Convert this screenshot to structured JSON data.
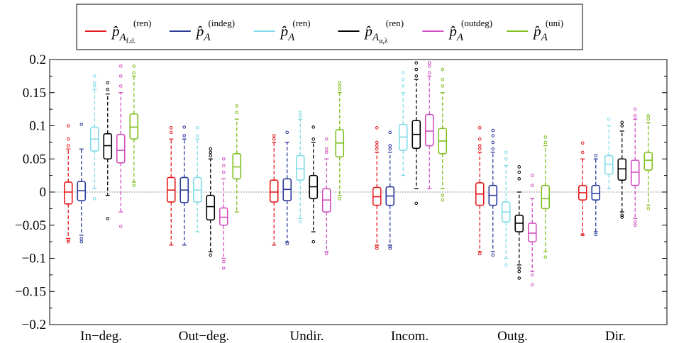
{
  "chart_data": {
    "type": "box",
    "categories": [
      "In−deg.",
      "Out−deg.",
      "Undir.",
      "Incom.",
      "Outg.",
      "Dir."
    ],
    "ylim": [
      -0.2,
      0.2
    ],
    "yticks": [
      "0.2",
      "0.15",
      "0.1",
      "0.05",
      "0",
      "−0.05",
      "−0.1",
      "−0.15",
      "−0.2"
    ],
    "ytick_values": [
      0.2,
      0.15,
      0.1,
      0.05,
      0,
      -0.05,
      -0.1,
      -0.15,
      -0.2
    ],
    "reference_line": 0,
    "legend_position": "top-center",
    "series": [
      {
        "name": "p̂A_f.d.^(ren)",
        "base": "p̂",
        "sub": "A",
        "subsub": "f.d.",
        "sup": "(ren)",
        "color": "#e41a1c",
        "boxes": [
          {
            "whislo": -0.07,
            "q1": -0.018,
            "med": 0.0,
            "q3": 0.015,
            "whishi": 0.065,
            "outliers": [
              -0.072,
              -0.075,
              0.07,
              0.08,
              0.1
            ]
          },
          {
            "whislo": -0.08,
            "q1": -0.015,
            "med": 0.003,
            "q3": 0.022,
            "whishi": 0.08,
            "outliers": [
              0.09,
              0.097
            ]
          },
          {
            "whislo": -0.08,
            "q1": -0.015,
            "med": 0.0,
            "q3": 0.018,
            "whishi": 0.075,
            "outliers": [
              0.08,
              0.085
            ]
          },
          {
            "whislo": -0.08,
            "q1": -0.02,
            "med": -0.007,
            "q3": 0.007,
            "whishi": 0.06,
            "outliers": [
              -0.082,
              -0.085,
              0.065,
              0.07,
              0.075,
              0.097
            ]
          },
          {
            "whislo": -0.09,
            "q1": -0.02,
            "med": -0.003,
            "q3": 0.014,
            "whishi": 0.06,
            "outliers": [
              -0.093,
              0.065,
              0.07,
              0.08,
              0.097
            ]
          },
          {
            "whislo": -0.065,
            "q1": -0.012,
            "med": -0.001,
            "q3": 0.01,
            "whishi": 0.05,
            "outliers": [
              -0.064,
              0.06,
              0.074
            ]
          }
        ]
      },
      {
        "name": "p̂A^(indeg)",
        "base": "p̂",
        "sub": "A",
        "subsub": "",
        "sup": "(indeg)",
        "color": "#2b3a9a",
        "boxes": [
          {
            "whislo": -0.065,
            "q1": -0.013,
            "med": 0.002,
            "q3": 0.016,
            "whishi": 0.065,
            "outliers": [
              -0.07,
              -0.075,
              0.102
            ]
          },
          {
            "whislo": -0.08,
            "q1": -0.016,
            "med": 0.003,
            "q3": 0.022,
            "whishi": 0.08,
            "outliers": [
              0.085,
              0.098
            ]
          },
          {
            "whislo": -0.075,
            "q1": -0.013,
            "med": 0.004,
            "q3": 0.02,
            "whishi": 0.075,
            "outliers": [
              -0.078,
              0.09
            ]
          },
          {
            "whislo": -0.08,
            "q1": -0.02,
            "med": -0.006,
            "q3": 0.008,
            "whishi": 0.06,
            "outliers": [
              -0.082,
              -0.085,
              0.065,
              0.07,
              0.09
            ]
          },
          {
            "whislo": -0.09,
            "q1": -0.02,
            "med": -0.005,
            "q3": 0.01,
            "whishi": 0.06,
            "outliers": [
              -0.095,
              0.065,
              0.075,
              0.085,
              0.093
            ]
          },
          {
            "whislo": -0.06,
            "q1": -0.012,
            "med": -0.002,
            "q3": 0.01,
            "whishi": 0.05,
            "outliers": [
              -0.064,
              0.055
            ]
          }
        ]
      },
      {
        "name": "p̂A^(ren)",
        "base": "p̂",
        "sub": "A",
        "subsub": "",
        "sup": "(ren)",
        "color": "#7fdbe6",
        "boxes": [
          {
            "whislo": 0.005,
            "q1": 0.062,
            "med": 0.08,
            "q3": 0.098,
            "whishi": 0.155,
            "outliers": [
              -0.01,
              0.16,
              0.165,
              0.175
            ]
          },
          {
            "whislo": -0.06,
            "q1": -0.015,
            "med": 0.003,
            "q3": 0.022,
            "whishi": 0.08,
            "outliers": [
              0.085,
              0.097
            ]
          },
          {
            "whislo": -0.04,
            "q1": 0.018,
            "med": 0.035,
            "q3": 0.055,
            "whishi": 0.11,
            "outliers": [
              -0.045,
              0.115,
              0.12
            ]
          },
          {
            "whislo": 0.025,
            "q1": 0.063,
            "med": 0.083,
            "q3": 0.102,
            "whishi": 0.15,
            "outliers": [
              0.16,
              0.17,
              0.18
            ]
          },
          {
            "whislo": -0.1,
            "q1": -0.045,
            "med": -0.03,
            "q3": -0.015,
            "whishi": 0.04,
            "outliers": [
              -0.11,
              0.05,
              0.06
            ]
          },
          {
            "whislo": 0.005,
            "q1": 0.027,
            "med": 0.042,
            "q3": 0.055,
            "whishi": 0.1,
            "outliers": [
              0.11
            ]
          }
        ]
      },
      {
        "name": "p̂A_α,λ^(ren)",
        "base": "p̂",
        "sub": "A",
        "subsub": "α,λ",
        "sup": "(ren)",
        "color": "#000000",
        "boxes": [
          {
            "whislo": -0.005,
            "q1": 0.05,
            "med": 0.07,
            "q3": 0.088,
            "whishi": 0.148,
            "outliers": [
              -0.04,
              0.155,
              0.165
            ]
          },
          {
            "whislo": -0.09,
            "q1": -0.042,
            "med": -0.022,
            "q3": -0.005,
            "whishi": 0.05,
            "outliers": [
              -0.095,
              0.055,
              0.06,
              0.065
            ]
          },
          {
            "whislo": -0.06,
            "q1": -0.01,
            "med": 0.008,
            "q3": 0.025,
            "whishi": 0.075,
            "outliers": [
              -0.075,
              0.08,
              0.098
            ]
          },
          {
            "whislo": 0.005,
            "q1": 0.066,
            "med": 0.087,
            "q3": 0.108,
            "whishi": 0.17,
            "outliers": [
              -0.017,
              0.175,
              0.185,
              0.195
            ]
          },
          {
            "whislo": -0.11,
            "q1": -0.06,
            "med": -0.047,
            "q3": -0.035,
            "whishi": 0.0,
            "outliers": [
              -0.115,
              -0.12,
              -0.13,
              0.02,
              0.03,
              0.038
            ]
          },
          {
            "whislo": -0.03,
            "q1": 0.018,
            "med": 0.035,
            "q3": 0.05,
            "whishi": 0.092,
            "outliers": [
              -0.035,
              -0.038,
              0.1,
              0.105
            ]
          }
        ]
      },
      {
        "name": "p̂A^(outdeg)",
        "base": "p̂",
        "sub": "A",
        "subsub": "",
        "sup": "(outdeg)",
        "color": "#d14fc0",
        "boxes": [
          {
            "whislo": -0.03,
            "q1": 0.044,
            "med": 0.063,
            "q3": 0.087,
            "whishi": 0.15,
            "outliers": [
              -0.052,
              0.16,
              0.175,
              0.19
            ]
          },
          {
            "whislo": -0.1,
            "q1": -0.05,
            "med": -0.038,
            "q3": -0.024,
            "whishi": 0.02,
            "outliers": [
              -0.105,
              -0.115,
              0.03,
              0.04,
              0.05
            ]
          },
          {
            "whislo": -0.09,
            "q1": -0.03,
            "med": -0.012,
            "q3": 0.005,
            "whishi": 0.05,
            "outliers": [
              -0.093,
              0.06,
              0.065,
              0.08
            ]
          },
          {
            "whislo": 0.005,
            "q1": 0.07,
            "med": 0.092,
            "q3": 0.117,
            "whishi": 0.175,
            "outliers": [
              0.18,
              0.19,
              0.195
            ]
          },
          {
            "whislo": -0.12,
            "q1": -0.075,
            "med": -0.062,
            "q3": -0.047,
            "whishi": -0.01,
            "outliers": [
              -0.125,
              -0.14,
              0.01,
              0.025
            ]
          },
          {
            "whislo": -0.04,
            "q1": 0.01,
            "med": 0.03,
            "q3": 0.048,
            "whishi": 0.11,
            "outliers": [
              -0.045,
              -0.05,
              0.115,
              0.125
            ]
          }
        ]
      },
      {
        "name": "p̂A^(uni)",
        "base": "p̂",
        "sub": "A",
        "subsub": "",
        "sup": "(uni)",
        "color": "#7fbf1f",
        "boxes": [
          {
            "whislo": 0.015,
            "q1": 0.08,
            "med": 0.098,
            "q3": 0.118,
            "whishi": 0.175,
            "outliers": [
              0.01,
              0.18,
              0.19
            ]
          },
          {
            "whislo": -0.03,
            "q1": 0.02,
            "med": 0.038,
            "q3": 0.058,
            "whishi": 0.11,
            "outliers": [
              0.12,
              0.13
            ]
          },
          {
            "whislo": -0.005,
            "q1": 0.053,
            "med": 0.074,
            "q3": 0.094,
            "whishi": 0.15,
            "outliers": [
              -0.01,
              0.155,
              0.16,
              0.165
            ]
          },
          {
            "whislo": 0.005,
            "q1": 0.058,
            "med": 0.077,
            "q3": 0.096,
            "whishi": 0.15,
            "outliers": [
              -0.005,
              -0.012,
              0.16,
              0.17,
              0.185
            ]
          },
          {
            "whislo": -0.09,
            "q1": -0.025,
            "med": -0.01,
            "q3": 0.01,
            "whishi": 0.07,
            "outliers": [
              -0.098,
              0.075,
              0.083
            ]
          },
          {
            "whislo": -0.02,
            "q1": 0.033,
            "med": 0.048,
            "q3": 0.06,
            "whishi": 0.105,
            "outliers": [
              -0.025,
              0.11,
              0.115
            ]
          }
        ]
      }
    ]
  }
}
